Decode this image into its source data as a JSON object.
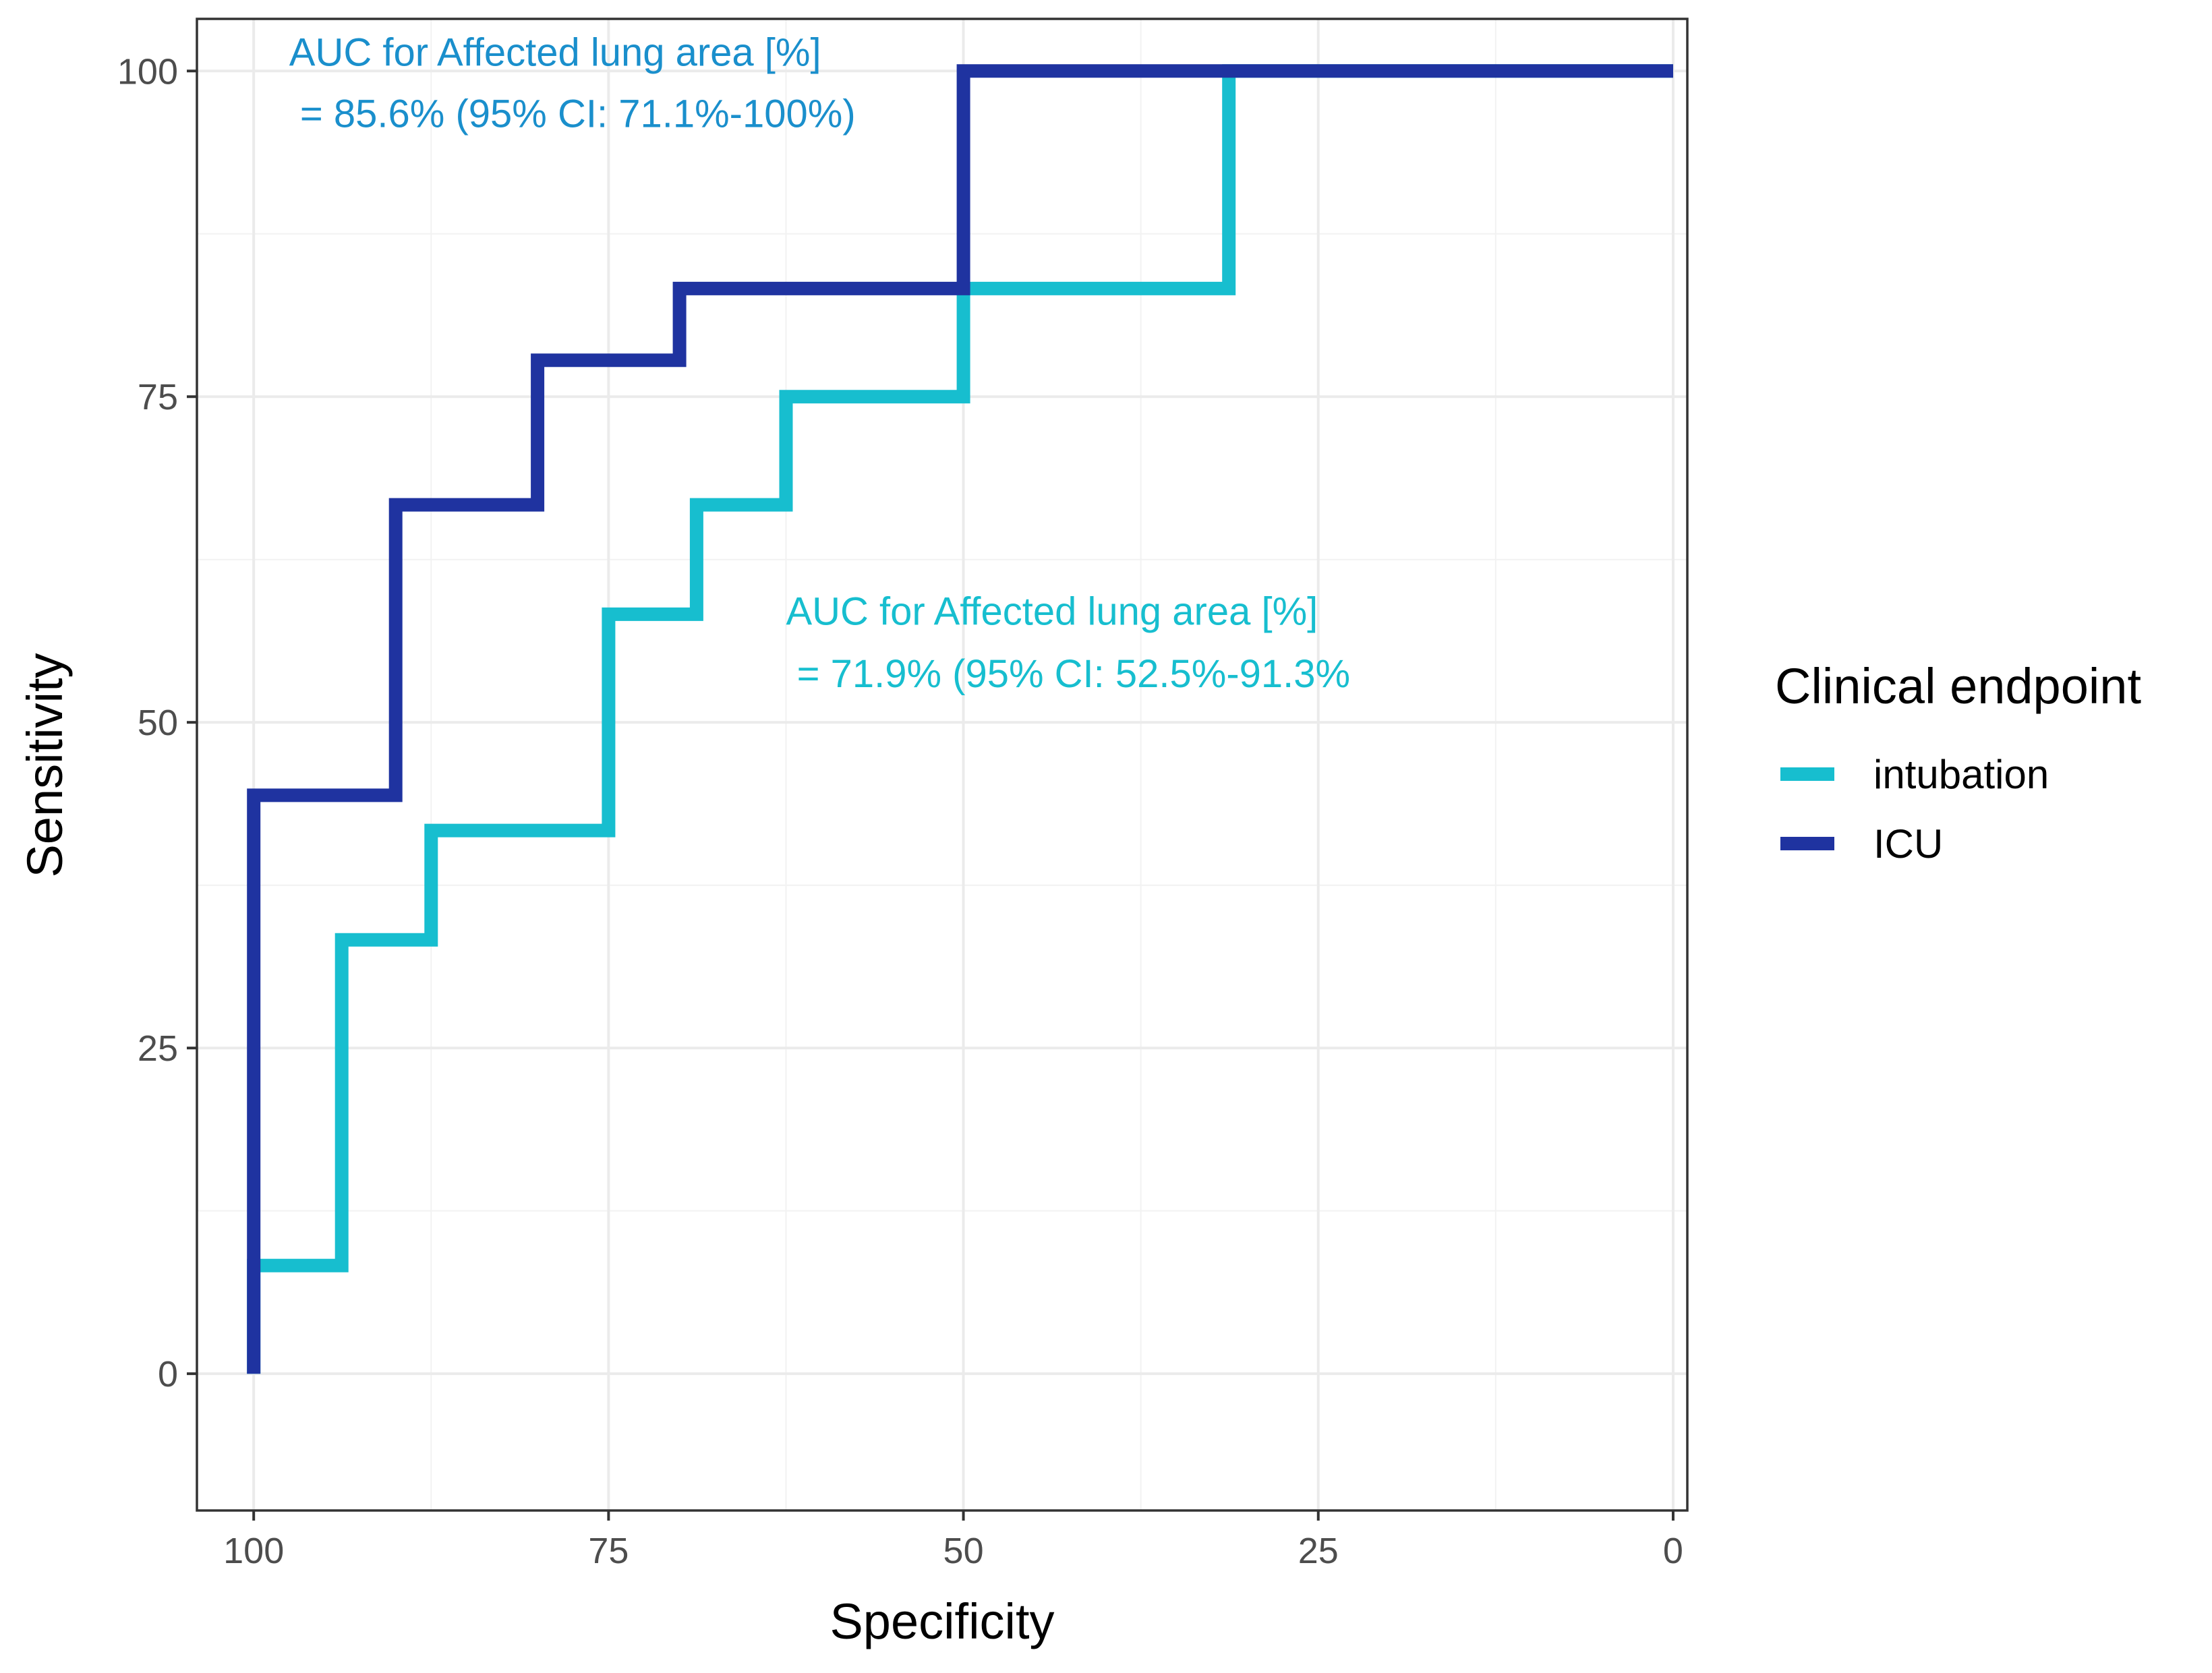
{
  "chart_data": {
    "type": "line",
    "step": true,
    "xlabel": "Specificity",
    "ylabel": "Sensitivity",
    "xlim": [
      104,
      -1
    ],
    "ylim": [
      -10.5,
      104
    ],
    "x_reversed": true,
    "x_ticks": [
      100,
      75,
      50,
      25,
      0
    ],
    "x_tick_labels": [
      "100",
      "75",
      "50",
      "25",
      "0"
    ],
    "y_ticks": [
      0,
      25,
      50,
      75,
      100
    ],
    "y_tick_labels": [
      "0",
      "25",
      "50",
      "75",
      "100"
    ],
    "grid": true,
    "legend": {
      "title": "Clinical endpoint",
      "position": "right",
      "entries": [
        "intubation",
        "ICU"
      ]
    },
    "series": [
      {
        "name": "intubation",
        "color": "#17BECF",
        "points": [
          [
            100,
            0
          ],
          [
            100,
            8.3
          ],
          [
            93.8,
            8.3
          ],
          [
            93.8,
            33.3
          ],
          [
            87.5,
            33.3
          ],
          [
            87.5,
            41.7
          ],
          [
            75,
            41.7
          ],
          [
            75,
            58.3
          ],
          [
            68.8,
            58.3
          ],
          [
            68.8,
            66.7
          ],
          [
            62.5,
            66.7
          ],
          [
            62.5,
            75
          ],
          [
            50,
            75
          ],
          [
            50,
            83.3
          ],
          [
            31.3,
            83.3
          ],
          [
            31.3,
            100
          ],
          [
            0,
            100
          ]
        ]
      },
      {
        "name": "ICU",
        "color": "#1F33A0",
        "points": [
          [
            100,
            0
          ],
          [
            100,
            44.4
          ],
          [
            90,
            44.4
          ],
          [
            90,
            66.7
          ],
          [
            80,
            66.7
          ],
          [
            80,
            77.8
          ],
          [
            70,
            77.8
          ],
          [
            70,
            83.3
          ],
          [
            50,
            83.3
          ],
          [
            50,
            100
          ],
          [
            0,
            100
          ]
        ]
      }
    ],
    "annotations": [
      {
        "series": "ICU",
        "color": "#1A8FCC",
        "line1": "AUC for Affected lung area [%]",
        "line2": " = 85.6% (95% CI: 71.1%-100%)",
        "x": 97.5,
        "y1": 100.4,
        "y2": 95.7
      },
      {
        "series": "intubation",
        "color": "#17BECF",
        "line1": "AUC for Affected lung area [%]",
        "line2": " = 71.9% (95% CI: 52.5%-91.3%",
        "x": 62.5,
        "y1": 57.5,
        "y2": 52.7
      }
    ]
  }
}
